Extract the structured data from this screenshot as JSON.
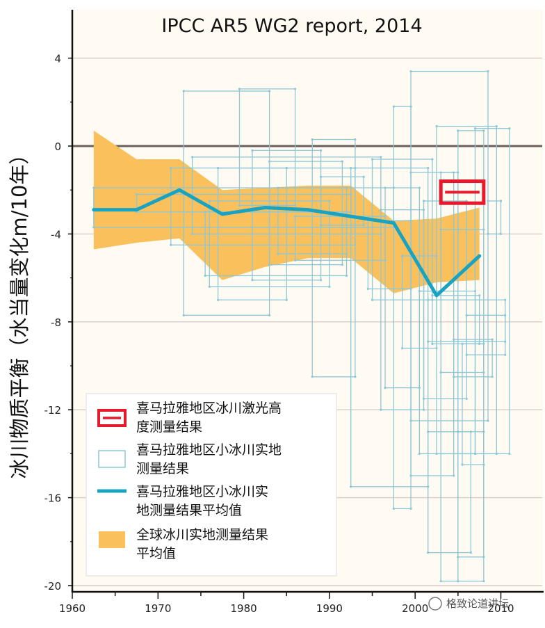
{
  "chart_data": {
    "type": "line",
    "title": "IPCC AR5 WG2 report, 2014",
    "xlabel": "",
    "ylabel": "冰川物质平衡（水当量变化m/10年）",
    "xlim": [
      1960,
      2012
    ],
    "ylim": [
      -20,
      5
    ],
    "x_ticks": [
      "1960",
      "1970",
      "1980",
      "1990",
      "2000",
      "2010"
    ],
    "y_ticks": [
      "4",
      "0",
      "-4",
      "-8",
      "-12",
      "-16",
      "-20"
    ],
    "x_tick_values": [
      1960,
      1970,
      1980,
      1990,
      2000,
      2010
    ],
    "y_tick_values": [
      4,
      0,
      -4,
      -8,
      -12,
      -16,
      -20
    ],
    "grid": "horizontal",
    "legend_position": "bottom-left",
    "series": [
      {
        "name": "全球冰川实地测量结果平均值",
        "kind": "band",
        "color": "#F9C05C",
        "x": [
          1962.5,
          1967.5,
          1972.5,
          1977.5,
          1982.5,
          1987.5,
          1992.5,
          1997.5,
          2002.5,
          2007.5
        ],
        "upper": [
          0.7,
          -0.6,
          -0.6,
          -2.0,
          -1.9,
          -1.8,
          -1.8,
          -3.4,
          -3.3,
          -2.8
        ],
        "lower": [
          -4.7,
          -4.4,
          -4.2,
          -6.1,
          -5.5,
          -5.1,
          -5.1,
          -6.7,
          -6.2,
          -6.1
        ]
      },
      {
        "name": "喜马拉雅地区小冰川实地测量结果平均值",
        "kind": "line",
        "color": "#1AA3C0",
        "x": [
          1962.5,
          1967.5,
          1972.5,
          1977.5,
          1982.5,
          1987.5,
          1992.5,
          1997.5,
          2002.5,
          2007.5
        ],
        "y": [
          -2.9,
          -2.9,
          -2.0,
          -3.1,
          -2.8,
          -2.9,
          -3.2,
          -3.5,
          -6.8,
          -5.0
        ]
      },
      {
        "name": "喜马拉雅地区小冰川实地测量结果",
        "kind": "boxes",
        "color": "#8CC7D6",
        "boxes": [
          [
            1962.5,
            1997.5,
            -1.9,
            -3.7
          ],
          [
            1967.5,
            1992.5,
            -2.2,
            -3.0
          ],
          [
            1971.5,
            1993.0,
            -1.0,
            -4.5
          ],
          [
            1973.0,
            1983.0,
            2.5,
            -7.7
          ],
          [
            1974.0,
            1996.0,
            -0.5,
            -4.0
          ],
          [
            1975.5,
            1992.0,
            -3.0,
            -5.9
          ],
          [
            1976.0,
            1990.0,
            -2.5,
            -6.4
          ],
          [
            1977.0,
            1985.0,
            -1.0,
            -7.0
          ],
          [
            1979.5,
            1986.0,
            2.6,
            -2.7
          ],
          [
            1981.0,
            1989.0,
            -0.2,
            -6.1
          ],
          [
            1983.0,
            1991.5,
            -0.7,
            -5.4
          ],
          [
            1984.0,
            1992.0,
            -1.9,
            -4.9
          ],
          [
            1986.0,
            1996.5,
            -3.2,
            -5.2
          ],
          [
            1988.0,
            1993.0,
            0.3,
            -10.5
          ],
          [
            1989.0,
            1994.0,
            -1.4,
            -3.6
          ],
          [
            1992.5,
            2001.5,
            -1.0,
            -15.5
          ],
          [
            1994.5,
            1999.5,
            -3.4,
            -6.5
          ],
          [
            1995.0,
            2002.0,
            -0.6,
            -7.0
          ],
          [
            1996.0,
            2001.0,
            -2.9,
            -12.0
          ],
          [
            1996.5,
            2000.5,
            -1.9,
            -11.0
          ],
          [
            1997.5,
            1999.5,
            1.8,
            -16.5
          ],
          [
            1998.5,
            2002.5,
            -5.0,
            -9.2
          ],
          [
            1999.5,
            2008.5,
            3.4,
            -12.5
          ],
          [
            1999.5,
            2004.5,
            -1.2,
            -15.0
          ],
          [
            2000.5,
            2007.0,
            -6.6,
            -14.0
          ],
          [
            2001.0,
            2006.0,
            -2.5,
            -11.5
          ],
          [
            2001.5,
            2010.5,
            -7.0,
            -8.9
          ],
          [
            2001.5,
            2006.5,
            -13.0,
            -18.5
          ],
          [
            2002.0,
            2007.5,
            -6.8,
            -9.0
          ],
          [
            2002.5,
            2009.5,
            0.9,
            -14.0
          ],
          [
            2003.0,
            2008.0,
            -3.8,
            -10.3
          ],
          [
            2003.0,
            2005.0,
            -1.2,
            -19.8
          ],
          [
            2004.5,
            2009.0,
            -8.8,
            -10.5
          ],
          [
            2005.0,
            2008.0,
            0.7,
            -18.7
          ],
          [
            2005.0,
            2008.0,
            -13.0,
            -19.8
          ],
          [
            2005.5,
            2008.0,
            -9.0,
            -14.5
          ],
          [
            2006.0,
            2010.5,
            -7.7,
            -9.5
          ],
          [
            2007.0,
            2011.0,
            0.8,
            -14.0
          ],
          [
            2008.5,
            2010.0,
            -2.5,
            -4.0
          ]
        ]
      },
      {
        "name": "喜马拉雅地区冰川激光高度测量结果",
        "kind": "rect",
        "color": "#E8192C",
        "x0": 2003.0,
        "x1": 2008.0,
        "y_upper": -1.6,
        "y_lower": -2.6
      }
    ],
    "legend": [
      {
        "kind": "rect",
        "line1": "喜马拉雅地区冰川激光高",
        "line2": "度测量结果"
      },
      {
        "kind": "boxes",
        "line1": "喜马拉雅地区小冰川实地",
        "line2": "测量结果"
      },
      {
        "kind": "line",
        "line1": "喜马拉雅地区小冰川实",
        "line2": "地测量结果平均值"
      },
      {
        "kind": "band",
        "line1": "全球冰川实地测量结果",
        "line2": "平均值"
      }
    ]
  },
  "watermark": "格致论道讲坛"
}
